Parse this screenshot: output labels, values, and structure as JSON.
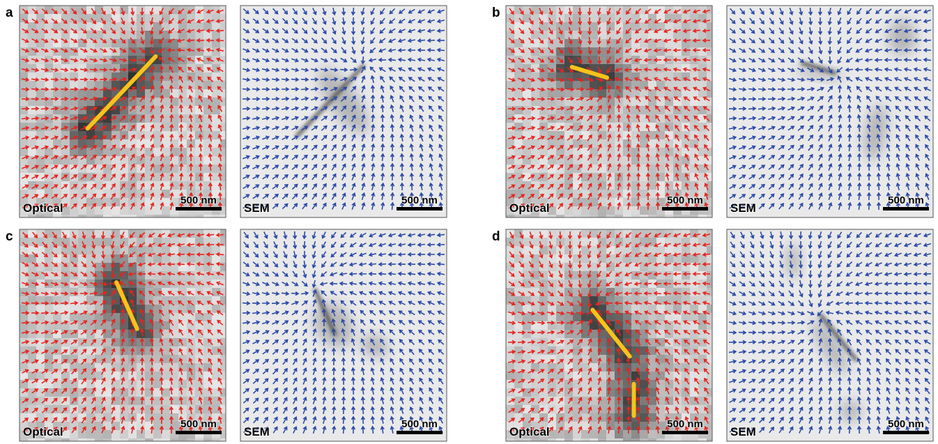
{
  "panels": [
    {
      "label": "a",
      "images": [
        {
          "caption": "Optical",
          "scale_bar": "500 nm"
        },
        {
          "caption": "SEM",
          "scale_bar": "500 nm"
        }
      ]
    },
    {
      "label": "b",
      "images": [
        {
          "caption": "Optical",
          "scale_bar": "500 nm"
        },
        {
          "caption": "SEM",
          "scale_bar": "500 nm"
        }
      ]
    },
    {
      "label": "c",
      "images": [
        {
          "caption": "Optical",
          "scale_bar": "500 nm"
        },
        {
          "caption": "SEM",
          "scale_bar": "500 nm"
        }
      ]
    },
    {
      "label": "d",
      "images": [
        {
          "caption": "Optical",
          "scale_bar": "500 nm"
        },
        {
          "caption": "SEM",
          "scale_bar": "500 nm"
        }
      ]
    }
  ]
}
